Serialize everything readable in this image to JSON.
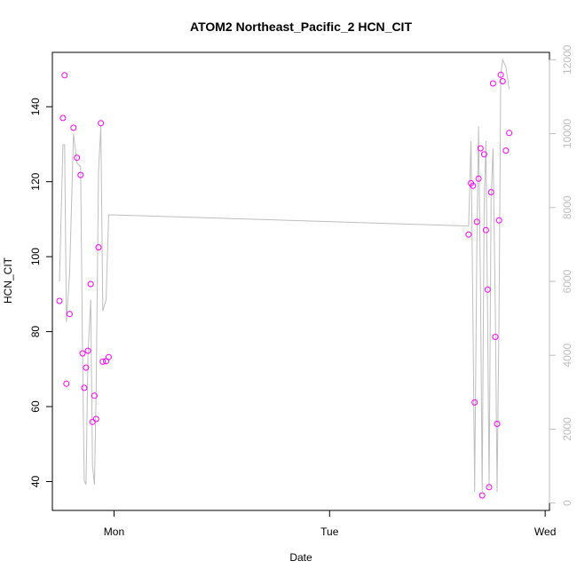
{
  "chart_data": {
    "type": "scatter",
    "title": "ATOM2 Northeast_Pacific_2 HCN_CIT",
    "xlabel": "Date",
    "ylabel": "HCN_CIT",
    "x_ticks": [
      "Mon",
      "Tue",
      "Wed"
    ],
    "xlim": [
      -0.286,
      2.02
    ],
    "ylim": [
      32.3,
      154.5
    ],
    "y_ticks": [
      40,
      60,
      80,
      100,
      120,
      140
    ],
    "y2lim": [
      -200,
      12200
    ],
    "y2_ticks": [
      0,
      2000,
      4000,
      6000,
      8000,
      10000,
      12000
    ],
    "point_color": "#ff00ff",
    "line_color": "#bebebe",
    "series": [
      {
        "type": "points",
        "axis": "left",
        "points": [
          [
            -0.253,
            88.2
          ],
          [
            -0.237,
            137.0
          ],
          [
            -0.229,
            148.4
          ],
          [
            -0.221,
            66.1
          ],
          [
            -0.206,
            84.7
          ],
          [
            -0.188,
            134.4
          ],
          [
            -0.172,
            126.4
          ],
          [
            -0.155,
            121.8
          ],
          [
            -0.146,
            74.2
          ],
          [
            -0.138,
            65.0
          ],
          [
            -0.13,
            70.4
          ],
          [
            -0.121,
            74.9
          ],
          [
            -0.108,
            92.7
          ],
          [
            -0.1,
            55.9
          ],
          [
            -0.091,
            62.9
          ],
          [
            -0.083,
            56.7
          ],
          [
            -0.072,
            102.5
          ],
          [
            -0.061,
            135.6
          ],
          [
            -0.052,
            72.0
          ],
          [
            -0.037,
            72.1
          ],
          [
            -0.025,
            73.2
          ],
          [
            1.645,
            105.9
          ],
          [
            1.656,
            119.6
          ],
          [
            1.665,
            118.9
          ],
          [
            1.673,
            61.1
          ],
          [
            1.683,
            109.3
          ],
          [
            1.691,
            120.8
          ],
          [
            1.7,
            128.9
          ],
          [
            1.708,
            36.3
          ],
          [
            1.717,
            127.3
          ],
          [
            1.725,
            107.1
          ],
          [
            1.733,
            91.2
          ],
          [
            1.74,
            38.5
          ],
          [
            1.749,
            117.2
          ],
          [
            1.758,
            146.2
          ],
          [
            1.769,
            78.6
          ],
          [
            1.777,
            55.4
          ],
          [
            1.786,
            109.7
          ],
          [
            1.794,
            148.5
          ],
          [
            1.803,
            146.8
          ],
          [
            1.818,
            128.3
          ],
          [
            1.833,
            133.0
          ]
        ]
      },
      {
        "type": "line",
        "axis": "right",
        "points": [
          [
            -0.253,
            6000
          ],
          [
            -0.237,
            9700
          ],
          [
            -0.229,
            9700
          ],
          [
            -0.221,
            4900
          ],
          [
            -0.206,
            6200
          ],
          [
            -0.188,
            10000
          ],
          [
            -0.172,
            9200
          ],
          [
            -0.163,
            9150
          ],
          [
            -0.155,
            9100
          ],
          [
            -0.146,
            4000
          ],
          [
            -0.138,
            600
          ],
          [
            -0.13,
            500
          ],
          [
            -0.121,
            4000
          ],
          [
            -0.108,
            5500
          ],
          [
            -0.1,
            1000
          ],
          [
            -0.091,
            500
          ],
          [
            -0.083,
            3000
          ],
          [
            -0.072,
            9000
          ],
          [
            -0.061,
            10200
          ],
          [
            -0.052,
            5200
          ],
          [
            -0.037,
            5500
          ],
          [
            -0.025,
            7800
          ],
          [
            0,
            7800
          ],
          [
            1.645,
            7500
          ],
          [
            1.656,
            9800
          ],
          [
            1.665,
            5000
          ],
          [
            1.673,
            300
          ],
          [
            1.683,
            7000
          ],
          [
            1.691,
            10200
          ],
          [
            1.7,
            5800
          ],
          [
            1.708,
            300
          ],
          [
            1.717,
            8000
          ],
          [
            1.725,
            9800
          ],
          [
            1.733,
            5000
          ],
          [
            1.74,
            400
          ],
          [
            1.749,
            8200
          ],
          [
            1.758,
            9600
          ],
          [
            1.769,
            5200
          ],
          [
            1.777,
            300
          ],
          [
            1.786,
            5200
          ],
          [
            1.794,
            11600
          ],
          [
            1.803,
            12000
          ],
          [
            1.818,
            11800
          ],
          [
            1.833,
            11200
          ]
        ]
      }
    ]
  }
}
